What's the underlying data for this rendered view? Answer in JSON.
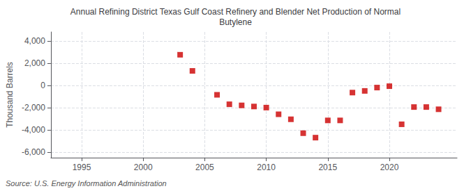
{
  "chart_data": {
    "type": "scatter",
    "title": "Annual Refining District Texas Gulf Coast Refinery and Blender Net Production of Normal\nButylene",
    "ylabel": "Thousand Barrels",
    "annotation": "Source: U.S. Energy Information Administration",
    "x": [
      2003,
      2004,
      2006,
      2007,
      2008,
      2009,
      2010,
      2011,
      2012,
      2013,
      2014,
      2015,
      2016,
      2017,
      2018,
      2019,
      2020,
      2021,
      2022,
      2023,
      2024
    ],
    "values": [
      2750,
      1300,
      -850,
      -1700,
      -1800,
      -1900,
      -2000,
      -2600,
      -3050,
      -4300,
      -4700,
      -3150,
      -3150,
      -650,
      -500,
      -200,
      -75,
      -3500,
      -1950,
      -1950,
      -2150
    ],
    "color": "#cc0000",
    "marker": "square",
    "xlim": [
      1992.5,
      2025.5
    ],
    "ylim": [
      -6500,
      4800
    ],
    "xticks": [
      1995,
      2000,
      2005,
      2010,
      2015,
      2020
    ],
    "yticks": [
      {
        "value": -6000,
        "label": "-6,000"
      },
      {
        "value": -4000,
        "label": "-4,000"
      },
      {
        "value": -2000,
        "label": "-2,000"
      },
      0,
      {
        "value": 2000,
        "label": "2,000"
      },
      {
        "value": 4000,
        "label": "4,000"
      }
    ],
    "grid": true
  }
}
